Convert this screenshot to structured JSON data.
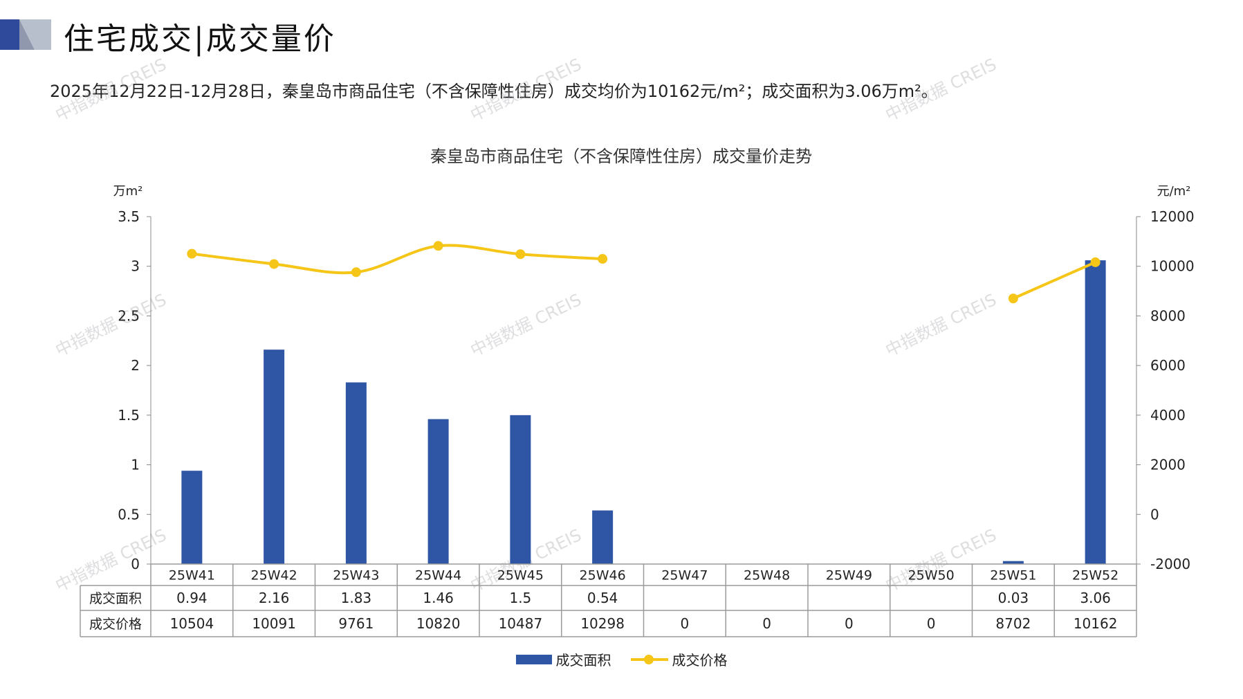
{
  "header": {
    "title": "住宅成交|成交量价",
    "summary": "2025年12月22日-12月28日，秦皇岛市商品住宅（不含保障性住房）成交均价为10162元/m²；成交面积为3.06万m²。"
  },
  "watermark": {
    "text": "中指数据 CREIS"
  },
  "colors": {
    "bar": "#2f56a5",
    "line": "#f5c518",
    "deco_dark": "#2f4a9a",
    "deco_light": "#b8bfcc"
  },
  "legend": {
    "bar_label": "成交面积",
    "line_label": "成交价格"
  },
  "chart_data": {
    "type": "bar+line",
    "title": "秦皇岛市商品住宅（不含保障性住房）成交量价走势",
    "categories": [
      "25W41",
      "25W42",
      "25W43",
      "25W44",
      "25W45",
      "25W46",
      "25W47",
      "25W48",
      "25W49",
      "25W50",
      "25W51",
      "25W52"
    ],
    "y_left": {
      "unit": "万m²",
      "ylim": [
        0,
        3.5
      ],
      "ticks": [
        "0",
        "0.5",
        "1",
        "1.5",
        "2",
        "2.5",
        "3",
        "3.5"
      ]
    },
    "y_right": {
      "unit": "元/m²",
      "ylim": [
        -2000,
        12000
      ],
      "ticks": [
        "-2000",
        "0",
        "2000",
        "4000",
        "6000",
        "8000",
        "10000",
        "12000"
      ]
    },
    "series": [
      {
        "name": "成交面积",
        "type": "bar",
        "axis": "left",
        "values": [
          0.94,
          2.16,
          1.83,
          1.46,
          1.5,
          0.54,
          null,
          null,
          null,
          null,
          0.03,
          3.06
        ],
        "labels": [
          "0.94",
          "2.16",
          "1.83",
          "1.46",
          "1.5",
          "0.54",
          "",
          "",
          "",
          "",
          "0.03",
          "3.06"
        ]
      },
      {
        "name": "成交价格",
        "type": "line",
        "axis": "right",
        "smooth": true,
        "values": [
          10504,
          10091,
          9761,
          10820,
          10487,
          10298,
          0,
          0,
          0,
          0,
          8702,
          10162
        ],
        "labels": [
          "10504",
          "10091",
          "9761",
          "10820",
          "10487",
          "10298",
          "0",
          "0",
          "0",
          "0",
          "8702",
          "10162"
        ]
      }
    ],
    "data_table": true,
    "legend_position": "bottom",
    "grid": false
  }
}
